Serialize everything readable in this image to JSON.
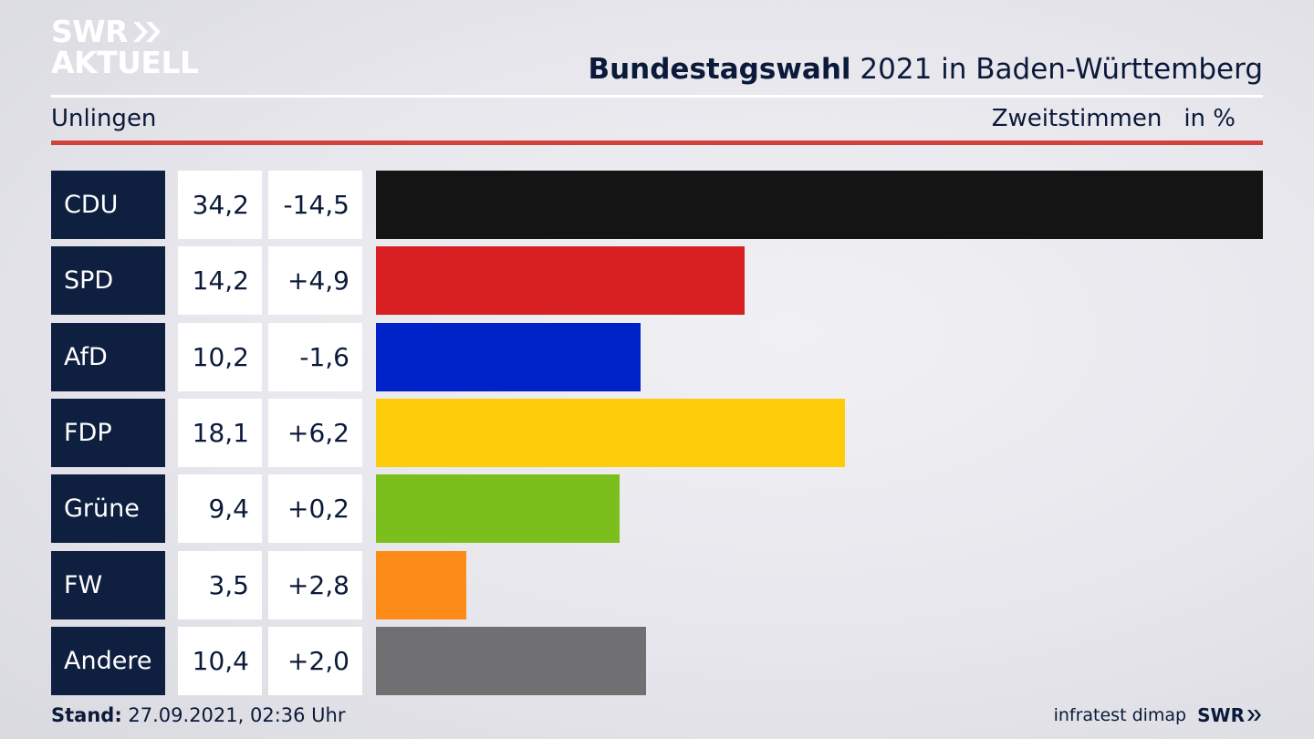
{
  "brand": {
    "line1": "SWR",
    "line2": "AKTUELL"
  },
  "header": {
    "title_bold": "Bundestagswahl",
    "title_rest": " 2021 in Baden-Württemberg"
  },
  "subheader": {
    "location": "Unlingen",
    "metric": "Zweitstimmen",
    "unit": "in %"
  },
  "footer": {
    "stand_label": "Stand:",
    "stand_value": " 27.09.2021, 02:36 Uhr",
    "source": "infratest dimap",
    "swr": "SWR"
  },
  "chart_data": {
    "type": "bar",
    "categories": [
      "CDU",
      "SPD",
      "AfD",
      "FDP",
      "Grüne",
      "FW",
      "Andere"
    ],
    "values": [
      34.2,
      14.2,
      10.2,
      18.1,
      9.4,
      3.5,
      10.4
    ],
    "value_labels": [
      "34,2",
      "14,2",
      "10,2",
      "18,1",
      "9,4",
      "3,5",
      "10,4"
    ],
    "changes": [
      -14.5,
      4.9,
      -1.6,
      6.2,
      0.2,
      2.8,
      2.0
    ],
    "change_labels": [
      "-14,5",
      "+4,9",
      "-1,6",
      "+6,2",
      "+0,2",
      "+2,8",
      "+2,0"
    ],
    "colors": [
      "#141414",
      "#d81f22",
      "#0022c9",
      "#fdcc0b",
      "#7bbf1c",
      "#fc8c17",
      "#707072"
    ],
    "xlim": [
      0,
      34.2
    ],
    "orientation": "horizontal"
  }
}
